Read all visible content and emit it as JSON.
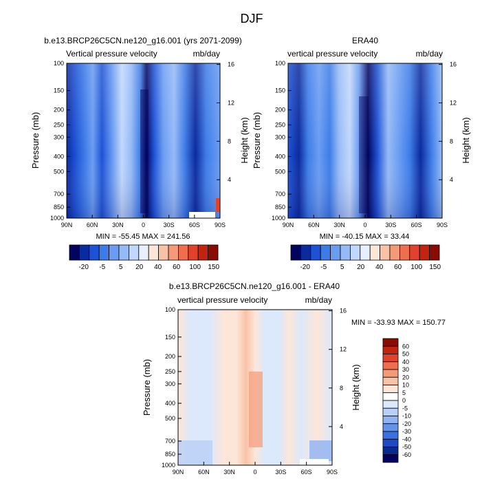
{
  "figure": {
    "title": "DJF"
  },
  "chart_data": [
    {
      "type": "heatmap",
      "title": "b.e13.BRCP26C5CN.ne120_g16.001 (yrs 2071-2099)",
      "left_label": "Vertical pressure velocity",
      "right_label": "mb/day",
      "xlabel": "",
      "ylabel": "Pressure (mb)",
      "y2label": "Height (km)",
      "x_ticks": [
        "90N",
        "60N",
        "30N",
        "0",
        "30S",
        "60S",
        "90S"
      ],
      "y_ticks": [
        100,
        150,
        200,
        250,
        300,
        400,
        500,
        700,
        850,
        1000
      ],
      "y2_ticks": [
        4,
        8,
        12,
        16
      ],
      "ylim": [
        1000,
        100
      ],
      "stats": "MIN = -55.45  MAX = 241.56",
      "color_levels": [
        -20,
        -5,
        5,
        20,
        40,
        60,
        100,
        150
      ],
      "colorbar_labels": [
        "-20",
        "-5",
        "5",
        "20",
        "40",
        "60",
        "100",
        "150"
      ]
    },
    {
      "type": "heatmap",
      "title": "ERA40",
      "left_label": "vertical pressure velocity",
      "right_label": "mb/day",
      "xlabel": "",
      "ylabel": "Pressure (mb)",
      "y2label": "Height (km)",
      "x_ticks": [
        "90N",
        "60N",
        "30N",
        "0",
        "30S",
        "60S",
        "90S"
      ],
      "y_ticks": [
        100,
        150,
        200,
        250,
        300,
        400,
        500,
        700,
        850,
        1000
      ],
      "y2_ticks": [
        4,
        8,
        12,
        16
      ],
      "ylim": [
        1000,
        100
      ],
      "stats": "MIN = -40.15  MAX =  33.44",
      "color_levels": [
        -20,
        -5,
        5,
        20,
        40,
        60,
        100,
        150
      ],
      "colorbar_labels": [
        "-20",
        "-5",
        "5",
        "20",
        "40",
        "60",
        "100",
        "150"
      ]
    },
    {
      "type": "heatmap",
      "title": "b.e13.BRCP26C5CN.ne120_g16.001 - ERA40",
      "left_label": "vertical pressure velocity",
      "right_label": "mb/day",
      "xlabel": "",
      "ylabel": "Pressure (mb)",
      "y2label": "Height (km)",
      "x_ticks": [
        "90N",
        "60N",
        "30N",
        "0",
        "30S",
        "60S",
        "90S"
      ],
      "y_ticks": [
        100,
        150,
        200,
        250,
        300,
        400,
        500,
        700,
        850,
        1000
      ],
      "y2_ticks": [
        4,
        8,
        12,
        16
      ],
      "ylim": [
        1000,
        100
      ],
      "stats": "MIN = -33.93  MAX = 150.77",
      "color_levels": [
        60,
        50,
        40,
        30,
        20,
        10,
        5,
        0,
        -5,
        -10,
        -20,
        -30,
        -40,
        -50,
        -60
      ],
      "colorbar_labels": [
        "60",
        "50",
        "40",
        "30",
        "20",
        "10",
        "5",
        "0",
        "-5",
        "-10",
        "-20",
        "-30",
        "-40",
        "-50",
        "-60"
      ]
    }
  ],
  "colors": {
    "abs_scale": [
      "#02045e",
      "#0a2a9e",
      "#1d52d6",
      "#3d7ce8",
      "#6a9cf2",
      "#96baf6",
      "#c2d8fa",
      "#e8f0fd",
      "#fde6d8",
      "#f9c2a6",
      "#f49a77",
      "#ee6e4e",
      "#e0422c",
      "#c4230f",
      "#8a0a04"
    ],
    "diff_scale": [
      "#8a0a04",
      "#c4230f",
      "#e0422c",
      "#ee6e4e",
      "#f49a77",
      "#f9c2a6",
      "#fde6d8",
      "#ffffff",
      "#dce8fb",
      "#b8d0f7",
      "#8fb3f2",
      "#6494ea",
      "#3c70df",
      "#1d4bc4",
      "#0a2a8e",
      "#02045e"
    ]
  }
}
